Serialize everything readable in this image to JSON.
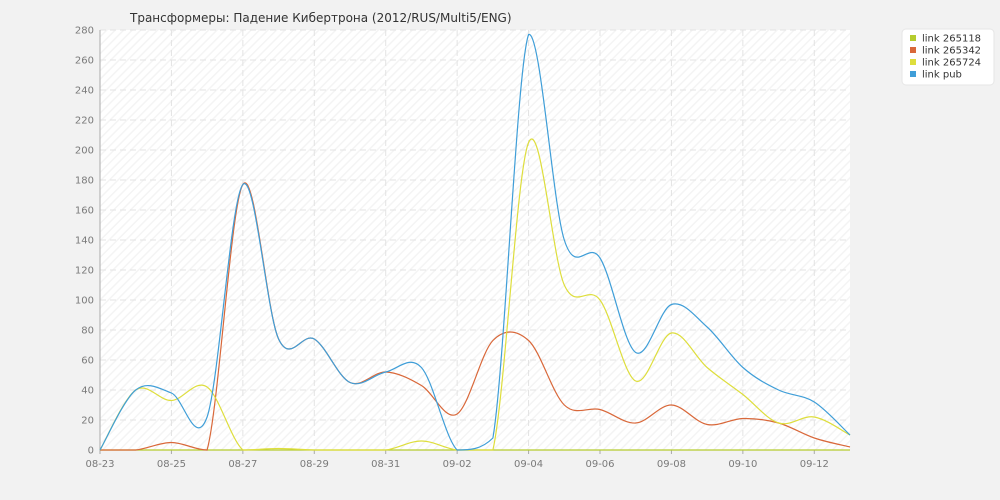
{
  "chart_data": {
    "type": "line",
    "title": "Трансформеры: Падение Кибертрона (2012/RUS/Multi5/ENG)",
    "xlabel": "",
    "ylabel": "",
    "ylim": [
      0,
      280
    ],
    "yticks": [
      0,
      20,
      40,
      60,
      80,
      100,
      120,
      140,
      160,
      180,
      200,
      220,
      240,
      260,
      280
    ],
    "x": [
      "08-23",
      "08-24",
      "08-25",
      "08-26",
      "08-27",
      "08-28",
      "08-29",
      "08-30",
      "08-31",
      "09-01",
      "09-02",
      "09-03",
      "09-04",
      "09-05",
      "09-06",
      "09-07",
      "09-08",
      "09-09",
      "09-10",
      "09-11",
      "09-12",
      "09-13"
    ],
    "xticks": [
      "08-23",
      "08-25",
      "08-27",
      "08-29",
      "08-31",
      "09-02",
      "09-04",
      "09-06",
      "09-08",
      "09-10",
      "09-12"
    ],
    "grid": true,
    "legend_position": "top-right",
    "series": [
      {
        "name": "link 265118",
        "color": "#b5cc2e",
        "values": [
          0,
          0,
          0,
          0,
          0,
          0,
          0,
          0,
          0,
          0,
          0,
          0,
          0,
          0,
          0,
          0,
          0,
          0,
          0,
          0,
          0,
          0
        ]
      },
      {
        "name": "link 265342",
        "color": "#d9683a",
        "values": [
          0,
          0,
          5,
          0,
          177,
          74,
          74,
          45,
          52,
          43,
          24,
          73,
          73,
          30,
          27,
          18,
          30,
          17,
          21,
          18,
          8,
          2
        ]
      },
      {
        "name": "link 265724",
        "color": "#dede3c",
        "values": [
          0,
          40,
          33,
          42,
          0,
          1,
          0,
          0,
          0,
          6,
          0,
          0,
          205,
          110,
          100,
          46,
          78,
          55,
          37,
          18,
          22,
          10
        ]
      },
      {
        "name": "link pub",
        "color": "#3f9ed8",
        "values": [
          0,
          40,
          38,
          22,
          177,
          74,
          74,
          45,
          52,
          55,
          0,
          8,
          277,
          140,
          128,
          65,
          97,
          82,
          55,
          40,
          32,
          10
        ]
      }
    ]
  }
}
